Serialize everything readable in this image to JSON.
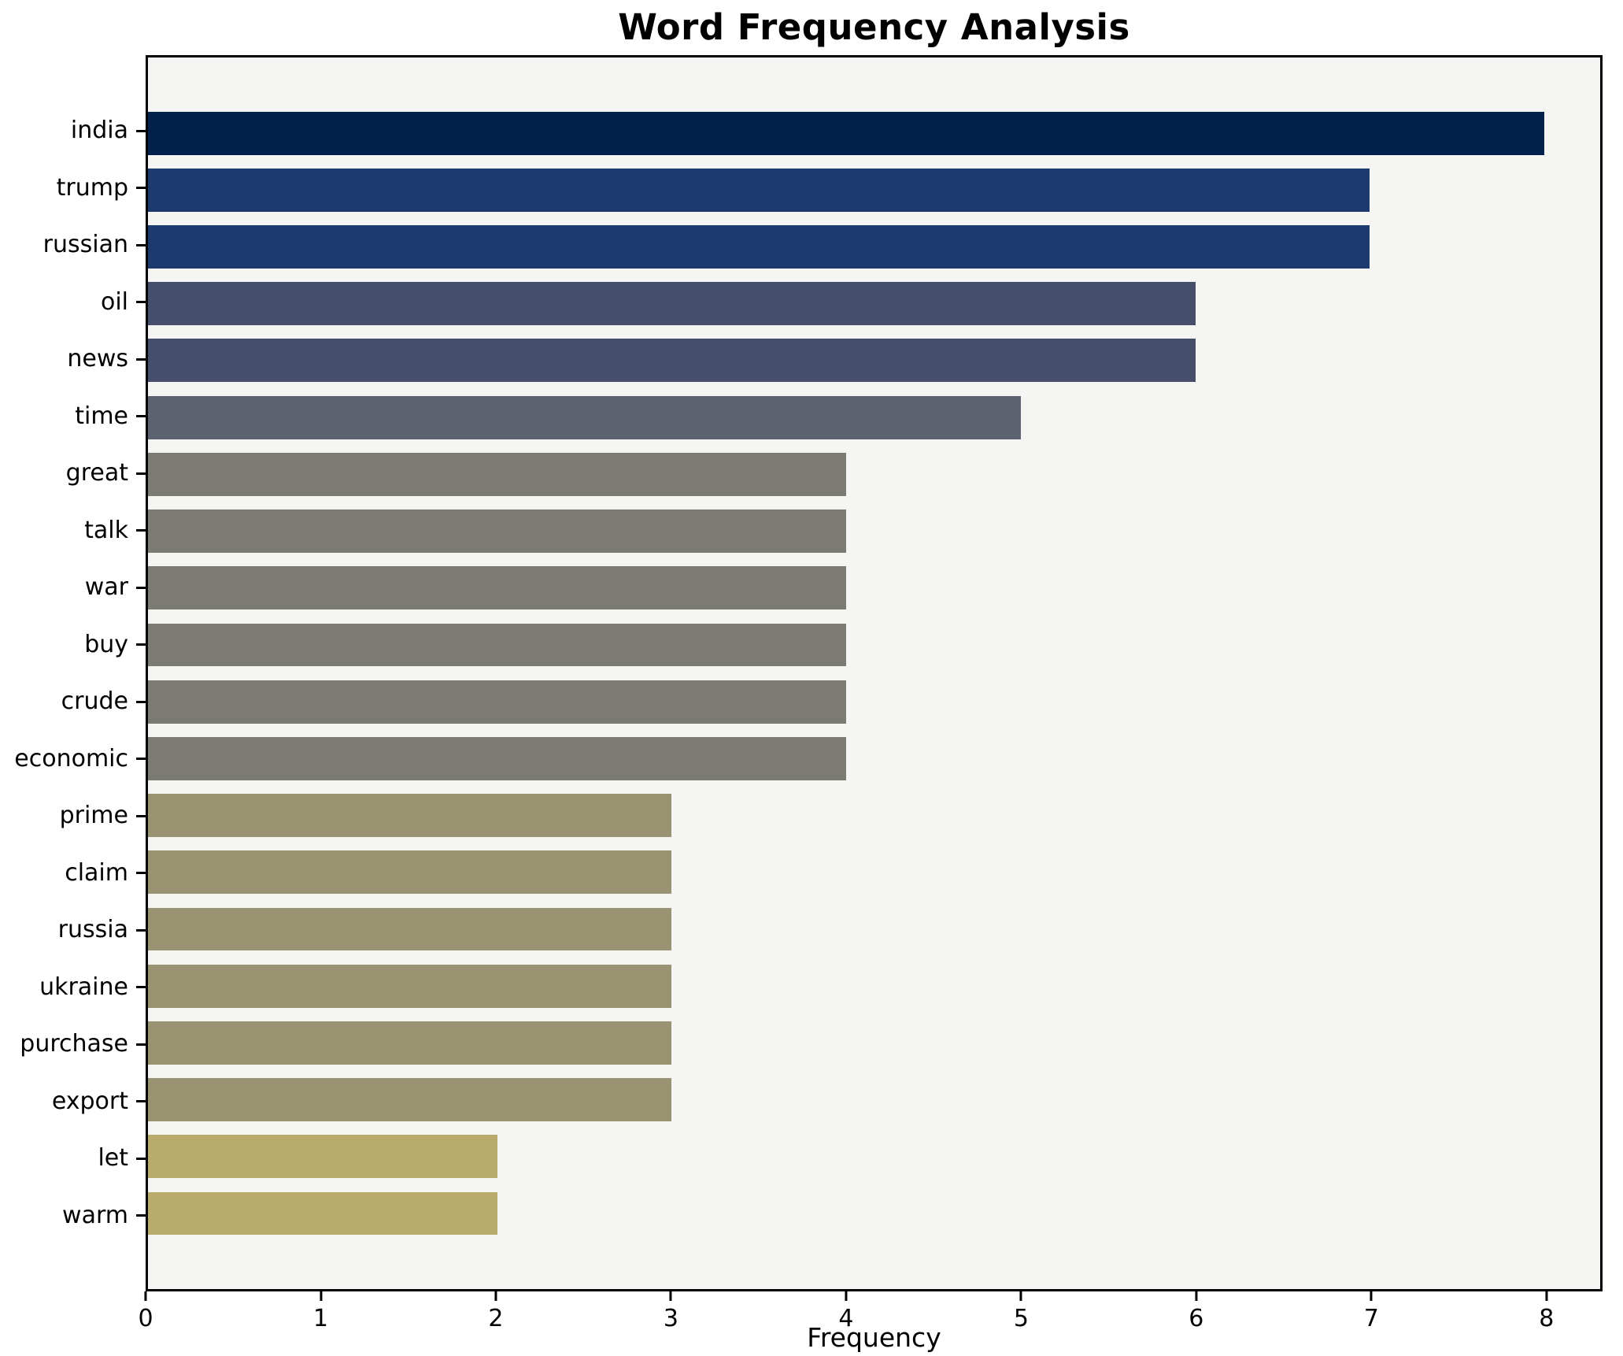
{
  "chart_data": {
    "type": "bar",
    "orientation": "horizontal",
    "title": "Word Frequency Analysis",
    "xlabel": "Frequency",
    "ylabel": "",
    "xlim": [
      0,
      8.32
    ],
    "x_ticks": [
      0,
      1,
      2,
      3,
      4,
      5,
      6,
      7,
      8
    ],
    "grid": false,
    "legend": "none",
    "plot_background": "#f5f5f3",
    "spine_color": "#000000",
    "categories": [
      "india",
      "trump",
      "russian",
      "oil",
      "news",
      "time",
      "great",
      "talk",
      "war",
      "buy",
      "crude",
      "economic",
      "prime",
      "claim",
      "russia",
      "ukraine",
      "purchase",
      "export",
      "let",
      "warm"
    ],
    "values": [
      8,
      7,
      7,
      6,
      6,
      5,
      4,
      4,
      4,
      4,
      4,
      4,
      3,
      3,
      3,
      3,
      3,
      3,
      2,
      2
    ],
    "bar_colors": [
      "#02224d",
      "#1d3a6e",
      "#1d3a6e",
      "#454e6b",
      "#454e6b",
      "#5d6270",
      "#7b7a73",
      "#7b7a73",
      "#7b7a73",
      "#7b7a73",
      "#7b7a73",
      "#7b7a73",
      "#999371",
      "#999371",
      "#999371",
      "#999371",
      "#999371",
      "#999371",
      "#b8ab6b",
      "#b8ab6b"
    ]
  }
}
